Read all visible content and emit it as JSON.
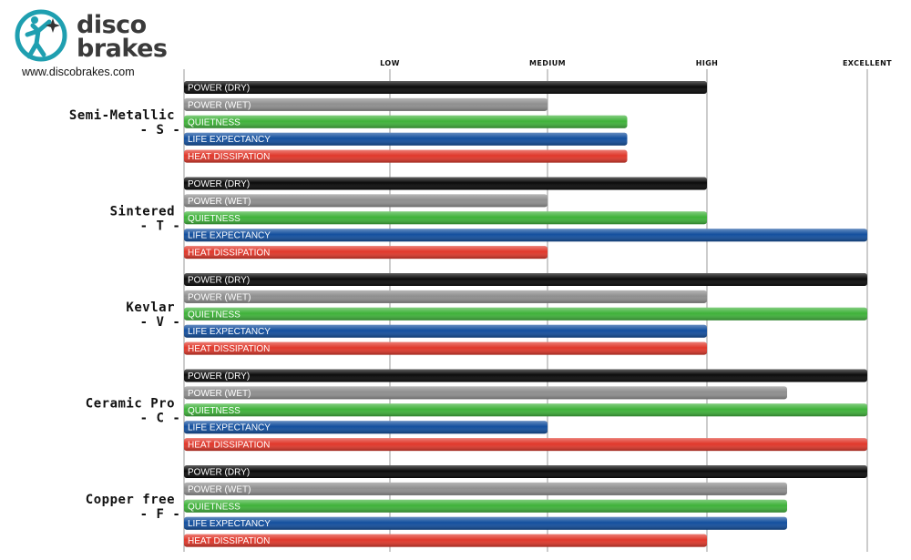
{
  "brand": {
    "name_line1": "disco",
    "name_line2": "brakes",
    "url": "www.discobrakes.com"
  },
  "colors": {
    "POWER (DRY)": "#0b0b0b",
    "POWER (WET)": "#8f8f8f",
    "QUIETNESS": "#3fb23a",
    "LIFE EXPECTANCY": "#134f9e",
    "HEAT DISSIPATION": "#e0382b"
  },
  "chart_data": {
    "type": "bar",
    "orientation": "horizontal",
    "scale_labels": [
      "LOW",
      "MEDIUM",
      "HIGH",
      "EXCELLENT"
    ],
    "xlim": [
      0,
      4
    ],
    "grid": true,
    "metrics": [
      "POWER (DRY)",
      "POWER (WET)",
      "QUIETNESS",
      "LIFE EXPECTANCY",
      "HEAT DISSIPATION"
    ],
    "groups": [
      {
        "name": "Semi-Metallic",
        "code": "- S -",
        "values": [
          3.0,
          2.0,
          2.5,
          2.5,
          2.5
        ]
      },
      {
        "name": "Sintered",
        "code": "- T -",
        "values": [
          3.0,
          2.0,
          3.0,
          4.0,
          2.0
        ]
      },
      {
        "name": "Kevlar",
        "code": "- V -",
        "values": [
          4.0,
          3.0,
          4.0,
          3.0,
          3.0
        ]
      },
      {
        "name": "Ceramic Pro",
        "code": "- C -",
        "values": [
          4.0,
          3.5,
          4.0,
          2.0,
          4.0
        ]
      },
      {
        "name": "Copper free",
        "code": "- F -",
        "values": [
          4.0,
          3.5,
          3.5,
          3.5,
          3.0
        ]
      }
    ]
  }
}
